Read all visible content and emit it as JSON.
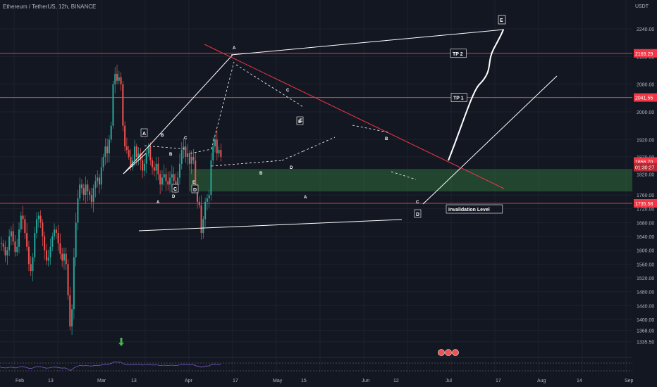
{
  "header": {
    "title": "Ethereum / TetherUS, 12h, BINANCE",
    "currency": "USDT"
  },
  "colors": {
    "bg": "#131722",
    "up": "#26a69a",
    "down": "#ef5350",
    "level": "#f23645",
    "zone": "#2e6b3a",
    "rsi": "#7e57c2"
  },
  "chart_data": {
    "type": "candlestick",
    "symbol": "Ethereum / TetherUS",
    "interval": "12h",
    "exchange": "BINANCE",
    "y_ticks": [
      2240.0,
      2160.0,
      2080.0,
      2000.0,
      1920.0,
      1870.0,
      1820.0,
      1760.0,
      1720.0,
      1680.0,
      1640.0,
      1600.0,
      1560.0,
      1520.0,
      1480.0,
      1440.0,
      1400.0,
      1368.0,
      1335.5
    ],
    "x_ticks": [
      "Feb",
      "13",
      "Mar",
      "13",
      "Apr",
      "17",
      "May",
      "15",
      "Jun",
      "12",
      "Jul",
      "17",
      "Aug",
      "14",
      "Sep"
    ],
    "price_labels": [
      "2169.29",
      "2041.55",
      "1856.70",
      "01:30:27",
      "1735.58"
    ],
    "levels": [
      {
        "name": "TP 2",
        "price": 2169.29
      },
      {
        "name": "TP 1",
        "price": 2041.55
      },
      {
        "name": "Invalidation Level",
        "price": 1735.58
      }
    ],
    "zone": [
      1770,
      1835
    ],
    "wave_labels": [
      "A",
      "B",
      "C",
      "D",
      "E",
      "A",
      "B",
      "C",
      "D",
      "E",
      "A",
      "B",
      "C",
      "D",
      "A",
      "B",
      "C",
      "D",
      "E"
    ],
    "trend": [
      [
        0,
        1620
      ],
      [
        2,
        1610
      ],
      [
        4,
        1585
      ],
      [
        6,
        1600
      ],
      [
        8,
        1640
      ],
      [
        10,
        1655
      ],
      [
        12,
        1625
      ],
      [
        14,
        1595
      ],
      [
        16,
        1610
      ],
      [
        18,
        1660
      ],
      [
        20,
        1700
      ],
      [
        22,
        1690
      ],
      [
        24,
        1650
      ],
      [
        26,
        1610
      ],
      [
        28,
        1560
      ],
      [
        30,
        1540
      ],
      [
        32,
        1580
      ],
      [
        34,
        1650
      ],
      [
        36,
        1690
      ],
      [
        38,
        1700
      ],
      [
        40,
        1680
      ],
      [
        42,
        1640
      ],
      [
        44,
        1600
      ],
      [
        46,
        1570
      ],
      [
        48,
        1580
      ],
      [
        50,
        1610
      ],
      [
        52,
        1640
      ],
      [
        54,
        1660
      ],
      [
        56,
        1650
      ],
      [
        58,
        1620
      ],
      [
        60,
        1590
      ],
      [
        62,
        1570
      ],
      [
        64,
        1590
      ],
      [
        66,
        1560
      ],
      [
        68,
        1470
      ],
      [
        70,
        1380
      ],
      [
        72,
        1430
      ],
      [
        74,
        1580
      ],
      [
        76,
        1680
      ],
      [
        78,
        1750
      ],
      [
        80,
        1790
      ],
      [
        82,
        1780
      ],
      [
        84,
        1760
      ],
      [
        86,
        1790
      ],
      [
        88,
        1770
      ],
      [
        90,
        1760
      ],
      [
        92,
        1740
      ],
      [
        94,
        1780
      ],
      [
        96,
        1800
      ],
      [
        98,
        1810
      ],
      [
        100,
        1790
      ],
      [
        102,
        1840
      ],
      [
        104,
        1870
      ],
      [
        106,
        1900
      ],
      [
        108,
        1880
      ],
      [
        110,
        1920
      ],
      [
        112,
        1960
      ],
      [
        114,
        2080
      ],
      [
        116,
        2110
      ],
      [
        118,
        2090
      ],
      [
        120,
        2100
      ],
      [
        122,
        2080
      ],
      [
        124,
        1960
      ],
      [
        126,
        1900
      ],
      [
        128,
        1890
      ],
      [
        130,
        1870
      ],
      [
        132,
        1840
      ],
      [
        134,
        1860
      ],
      [
        136,
        1900
      ],
      [
        138,
        1870
      ],
      [
        140,
        1880
      ],
      [
        142,
        1860
      ],
      [
        144,
        1830
      ],
      [
        146,
        1850
      ],
      [
        148,
        1880
      ],
      [
        150,
        1900
      ],
      [
        152,
        1860
      ],
      [
        154,
        1840
      ],
      [
        156,
        1830
      ],
      [
        158,
        1850
      ],
      [
        160,
        1820
      ],
      [
        162,
        1790
      ],
      [
        164,
        1810
      ],
      [
        166,
        1820
      ],
      [
        168,
        1800
      ],
      [
        170,
        1790
      ],
      [
        172,
        1810
      ],
      [
        174,
        1820
      ],
      [
        176,
        1800
      ],
      [
        178,
        1790
      ],
      [
        180,
        1810
      ],
      [
        182,
        1850
      ],
      [
        184,
        1890
      ],
      [
        186,
        1900
      ],
      [
        188,
        1870
      ],
      [
        190,
        1880
      ],
      [
        192,
        1850
      ],
      [
        194,
        1870
      ],
      [
        196,
        1860
      ],
      [
        198,
        1780
      ],
      [
        200,
        1740
      ],
      [
        202,
        1730
      ],
      [
        204,
        1650
      ],
      [
        206,
        1690
      ],
      [
        208,
        1740
      ],
      [
        210,
        1750
      ],
      [
        212,
        1760
      ],
      [
        214,
        1860
      ],
      [
        216,
        1900
      ],
      [
        218,
        1920
      ],
      [
        220,
        1880
      ],
      [
        222,
        1890
      ],
      [
        224,
        1870
      ]
    ]
  }
}
